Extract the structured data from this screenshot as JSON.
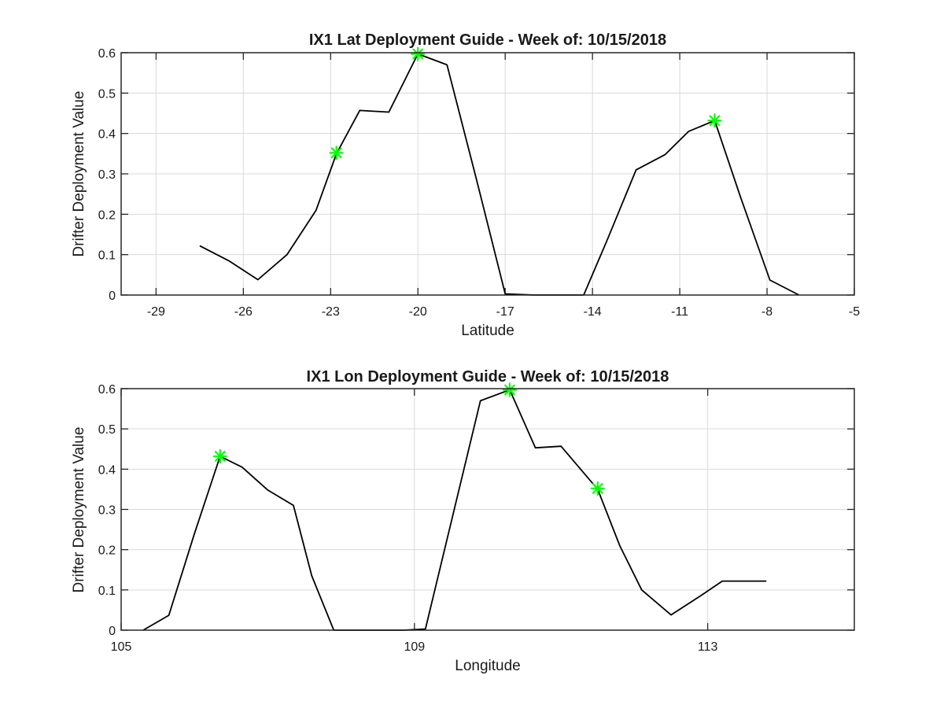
{
  "chart_data": [
    {
      "type": "line",
      "title": "IX1 Lat Deployment Guide - Week of: 10/15/2018",
      "xlabel": "Latitude",
      "ylabel": "Drifter Deployment Value",
      "xlim": [
        -30.2,
        -5
      ],
      "ylim": [
        0,
        0.6
      ],
      "xticks": [
        -29,
        -26,
        -23,
        -20,
        -17,
        -14,
        -11,
        -8,
        -5
      ],
      "yticks": [
        0,
        0.1,
        0.2,
        0.3,
        0.4,
        0.5,
        0.6
      ],
      "xgrid": true,
      "ygrid": true,
      "line_color": "#000000",
      "marker_color": "#00ff00",
      "series": [
        {
          "x": [
            -27.5,
            -26.5,
            -25.5,
            -24.5,
            -23.5,
            -22.8,
            -22.0,
            -21.0,
            -20.0,
            -19.0,
            -18.0,
            -17.0,
            -16.0,
            -15.0,
            -14.3,
            -13.5,
            -12.5,
            -11.5,
            -10.7,
            -9.8,
            -8.9,
            -7.9,
            -6.9
          ],
          "y": [
            0.122,
            0.085,
            0.038,
            0.1,
            0.21,
            0.35,
            0.457,
            0.453,
            0.597,
            0.57,
            0.29,
            0.003,
            0.0,
            0.0,
            0.0,
            0.135,
            0.31,
            0.348,
            0.405,
            0.432,
            0.24,
            0.037,
            0.0
          ]
        }
      ],
      "markers": [
        {
          "x": -22.8,
          "y": 0.352
        },
        {
          "x": -20.0,
          "y": 0.597
        },
        {
          "x": -9.8,
          "y": 0.432
        }
      ]
    },
    {
      "type": "line",
      "title": "IX1 Lon Deployment Guide - Week of: 10/15/2018",
      "xlabel": "Longitude",
      "ylabel": "Drifter Deployment Value",
      "xlim": [
        105,
        115
      ],
      "ylim": [
        0,
        0.6
      ],
      "xticks": [
        105,
        109,
        113
      ],
      "yticks": [
        0,
        0.1,
        0.2,
        0.3,
        0.4,
        0.5,
        0.6
      ],
      "xgrid": true,
      "ygrid": true,
      "line_color": "#000000",
      "marker_color": "#00ff00",
      "series": [
        {
          "x": [
            105.3,
            105.65,
            106.0,
            106.35,
            106.65,
            107.0,
            107.35,
            107.6,
            107.9,
            108.4,
            108.85,
            109.15,
            109.9,
            110.3,
            110.65,
            111.0,
            111.5,
            111.8,
            112.1,
            112.5,
            112.9,
            113.2,
            113.8
          ],
          "y": [
            0.0,
            0.037,
            0.24,
            0.432,
            0.405,
            0.348,
            0.31,
            0.135,
            0.0,
            0.0,
            0.0,
            0.003,
            0.57,
            0.597,
            0.453,
            0.457,
            0.35,
            0.21,
            0.1,
            0.038,
            0.085,
            0.122,
            0.122
          ]
        }
      ],
      "markers": [
        {
          "x": 106.35,
          "y": 0.432
        },
        {
          "x": 110.3,
          "y": 0.597
        },
        {
          "x": 111.5,
          "y": 0.352
        }
      ]
    }
  ]
}
